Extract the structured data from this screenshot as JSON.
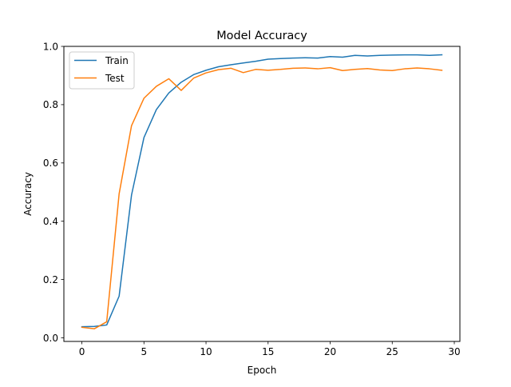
{
  "chart_data": {
    "type": "line",
    "title": "Model Accuracy",
    "xlabel": "Epoch",
    "ylabel": "Accuracy",
    "xlim": [
      -1.45,
      30.45
    ],
    "ylim": [
      -0.0124,
      1.0
    ],
    "xticks": [
      0,
      5,
      10,
      15,
      20,
      25,
      30
    ],
    "xtick_labels": [
      "0",
      "5",
      "10",
      "15",
      "20",
      "25",
      "30"
    ],
    "yticks": [
      0.0,
      0.2,
      0.4,
      0.6,
      0.8,
      1.0
    ],
    "ytick_labels": [
      "0.0",
      "0.2",
      "0.4",
      "0.6",
      "0.8",
      "1.0"
    ],
    "grid": false,
    "legend": {
      "position": "upper-left"
    },
    "x": [
      0,
      1,
      2,
      3,
      4,
      5,
      6,
      7,
      8,
      9,
      10,
      11,
      12,
      13,
      14,
      15,
      16,
      17,
      18,
      19,
      20,
      21,
      22,
      23,
      24,
      25,
      26,
      27,
      28,
      29
    ],
    "series": [
      {
        "name": "Train",
        "color": "#1f77b4",
        "values": [
          0.038,
          0.039,
          0.044,
          0.143,
          0.49,
          0.687,
          0.783,
          0.84,
          0.877,
          0.903,
          0.918,
          0.93,
          0.937,
          0.943,
          0.949,
          0.956,
          0.958,
          0.96,
          0.961,
          0.96,
          0.965,
          0.963,
          0.969,
          0.967,
          0.969,
          0.97,
          0.971,
          0.971,
          0.969,
          0.971
        ]
      },
      {
        "name": "Test",
        "color": "#ff7f0e",
        "values": [
          0.036,
          0.031,
          0.055,
          0.494,
          0.728,
          0.822,
          0.863,
          0.889,
          0.849,
          0.891,
          0.909,
          0.92,
          0.925,
          0.91,
          0.921,
          0.918,
          0.921,
          0.925,
          0.926,
          0.923,
          0.927,
          0.917,
          0.921,
          0.924,
          0.919,
          0.917,
          0.923,
          0.926,
          0.923,
          0.918
        ]
      }
    ]
  }
}
